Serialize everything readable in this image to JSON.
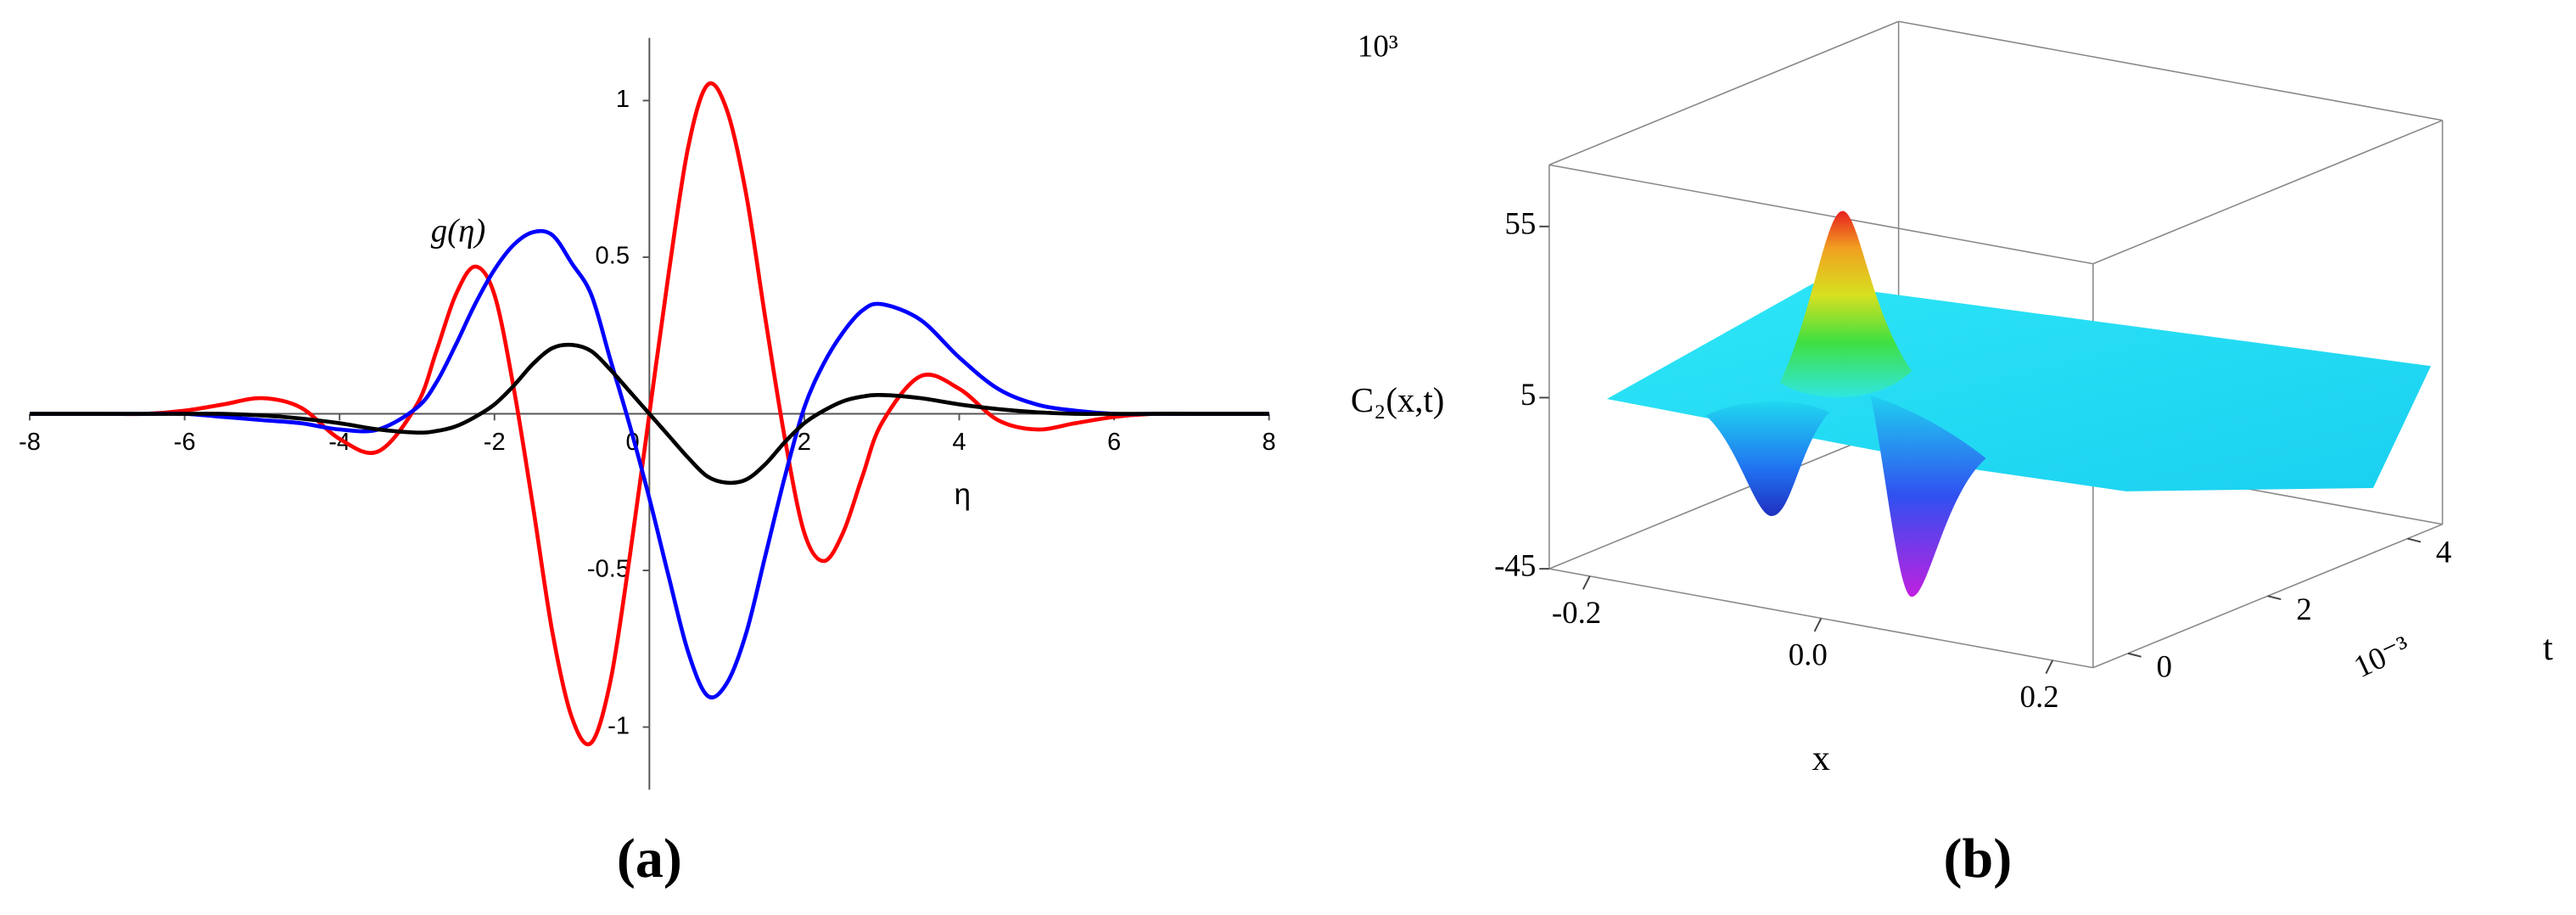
{
  "chart_data": [
    {
      "type": "line",
      "panel_label": "(a)",
      "xlabel": "η",
      "ylabel": "g(η)",
      "x": [
        -8,
        -7.5,
        -7,
        -6.5,
        -6,
        -5.5,
        -5,
        -4.5,
        -4,
        -3.5,
        -3,
        -2.75,
        -2.5,
        -2.25,
        -2,
        -1.75,
        -1.5,
        -1.25,
        -1,
        -0.75,
        -0.5,
        -0.25,
        0,
        0.25,
        0.5,
        0.75,
        1,
        1.25,
        1.5,
        1.75,
        2,
        2.25,
        2.5,
        2.75,
        3,
        3.5,
        4,
        4.5,
        5,
        5.5,
        6,
        6.5,
        7,
        7.5,
        8
      ],
      "series": [
        {
          "color": "#ff0000",
          "values": [
            0,
            0,
            0,
            0,
            0.01,
            0.03,
            0.05,
            0.02,
            -0.08,
            -0.12,
            0.03,
            0.2,
            0.38,
            0.47,
            0.38,
            0.08,
            -0.3,
            -0.7,
            -0.97,
            -1.05,
            -0.85,
            -0.45,
            0,
            0.45,
            0.85,
            1.05,
            0.97,
            0.7,
            0.3,
            -0.08,
            -0.38,
            -0.47,
            -0.38,
            -0.2,
            -0.03,
            0.12,
            0.08,
            -0.02,
            -0.05,
            -0.03,
            -0.01,
            0,
            0,
            0,
            0
          ]
        },
        {
          "color": "#0000ff",
          "values": [
            0,
            0,
            0,
            0,
            0,
            -0.01,
            -0.02,
            -0.03,
            -0.05,
            -0.05,
            0.02,
            0.1,
            0.22,
            0.35,
            0.46,
            0.54,
            0.58,
            0.57,
            0.48,
            0.38,
            0.17,
            -0.04,
            -0.27,
            -0.52,
            -0.76,
            -0.9,
            -0.86,
            -0.7,
            -0.45,
            -0.2,
            0.02,
            0.16,
            0.26,
            0.33,
            0.35,
            0.3,
            0.18,
            0.08,
            0.03,
            0.01,
            0,
            0,
            0,
            0,
            0
          ]
        },
        {
          "color": "#000000",
          "values": [
            0,
            0,
            0,
            0,
            0,
            0,
            -0.005,
            -0.015,
            -0.03,
            -0.05,
            -0.06,
            -0.055,
            -0.04,
            -0.01,
            0.03,
            0.09,
            0.16,
            0.21,
            0.22,
            0.2,
            0.14,
            0.07,
            0,
            -0.07,
            -0.14,
            -0.2,
            -0.22,
            -0.21,
            -0.16,
            -0.09,
            -0.03,
            0.01,
            0.04,
            0.055,
            0.06,
            0.05,
            0.03,
            0.015,
            0.005,
            0,
            0,
            0,
            0,
            0,
            0
          ]
        }
      ],
      "xlim": [
        -8,
        8
      ],
      "xticks": [
        -8,
        -6,
        -4,
        -2,
        0,
        2,
        4,
        6,
        8
      ],
      "ylim": [
        -1.2,
        1.2
      ],
      "yticks": [
        -1,
        -0.5,
        0.5,
        1
      ],
      "grid": false
    },
    {
      "type": "surface",
      "panel_label": "(b)",
      "xlabel": "x",
      "ylabel": "t",
      "zlabel": "C₂(x,t)",
      "zscale": "10³",
      "tscale": "10⁻³",
      "xlim": [
        -0.235,
        0.235
      ],
      "xticks": [
        -0.2,
        {
          "value": 0,
          "label": "0.0"
        },
        0.2
      ],
      "ylim": [
        -0.5,
        4.5
      ],
      "yticks": [
        0,
        2,
        4
      ],
      "zlim": [
        -45,
        73
      ],
      "zticks": [
        -45,
        5,
        55
      ]
    }
  ]
}
